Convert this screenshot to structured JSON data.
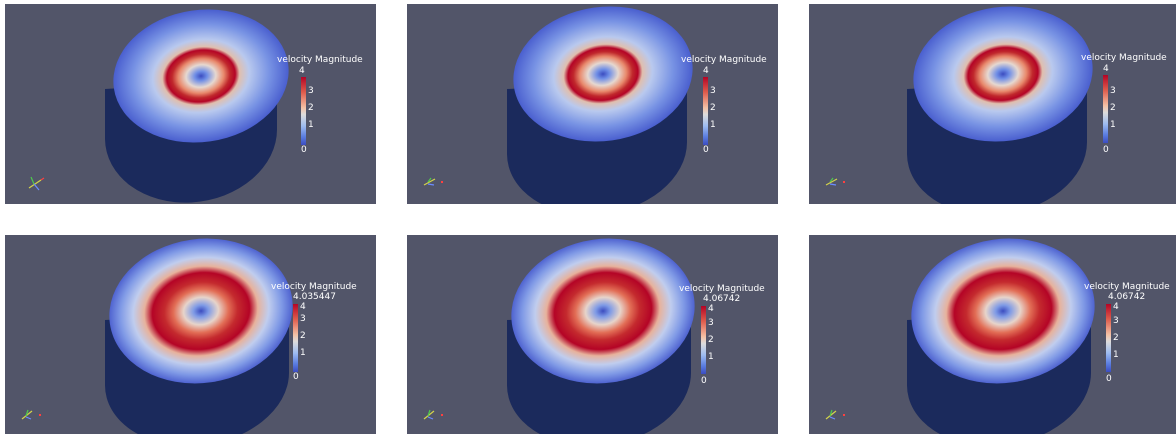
{
  "colors": {
    "background": "#525569",
    "cylinder_side": "#1b2a5c",
    "colormap_low": "#3b4cc0",
    "colormap_mid": "#dedcdb",
    "colormap_high": "#b40426"
  },
  "panels": [
    {
      "legend_title": "velocity Magnitude",
      "legend_max": "",
      "ticks": [
        "4",
        "3",
        "2",
        "1",
        "0"
      ]
    },
    {
      "legend_title": "velocity Magnitude",
      "legend_max": "",
      "ticks": [
        "4",
        "3",
        "2",
        "1",
        "0"
      ]
    },
    {
      "legend_title": "velocity Magnitude",
      "legend_max": "",
      "ticks": [
        "4",
        "3",
        "2",
        "1",
        "0"
      ]
    },
    {
      "legend_title": "velocity Magnitude",
      "legend_max": "4.035447",
      "ticks": [
        "4",
        "3",
        "2",
        "1",
        "0"
      ]
    },
    {
      "legend_title": "velocity Magnitude",
      "legend_max": "4.06742",
      "ticks": [
        "4",
        "3",
        "2",
        "1",
        "0"
      ]
    },
    {
      "legend_title": "velocity Magnitude",
      "legend_max": "4.06742",
      "ticks": [
        "4",
        "3",
        "2",
        "1",
        "0"
      ]
    }
  ]
}
